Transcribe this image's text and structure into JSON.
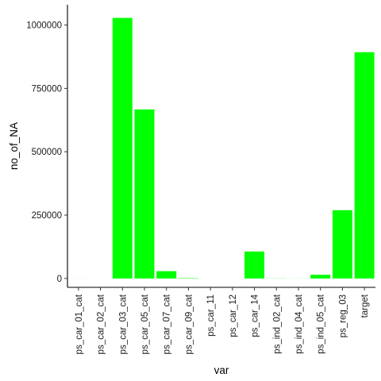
{
  "chart_data": {
    "type": "bar",
    "xlabel": "var",
    "ylabel": "no_of_NA",
    "categories": [
      "ps_car_01_cat",
      "ps_car_02_cat",
      "ps_car_03_cat",
      "ps_car_05_cat",
      "ps_car_07_cat",
      "ps_car_09_cat",
      "ps_car_11",
      "ps_car_12",
      "ps_car_14",
      "ps_ind_02_cat",
      "ps_ind_04_cat",
      "ps_ind_05_cat",
      "ps_reg_03",
      "target"
    ],
    "values": [
      160,
      10,
      1028142,
      666910,
      28820,
      1446,
      6,
      1,
      106425,
      523,
      228,
      14519,
      269456,
      892816
    ],
    "ylim": [
      -35000,
      1080000
    ],
    "yticks": [
      0,
      250000,
      500000,
      750000,
      1000000
    ],
    "ytick_labels": [
      "0",
      "250000",
      "500000",
      "750000",
      "1000000"
    ],
    "bar_color": "#00ff00",
    "grid": false
  }
}
